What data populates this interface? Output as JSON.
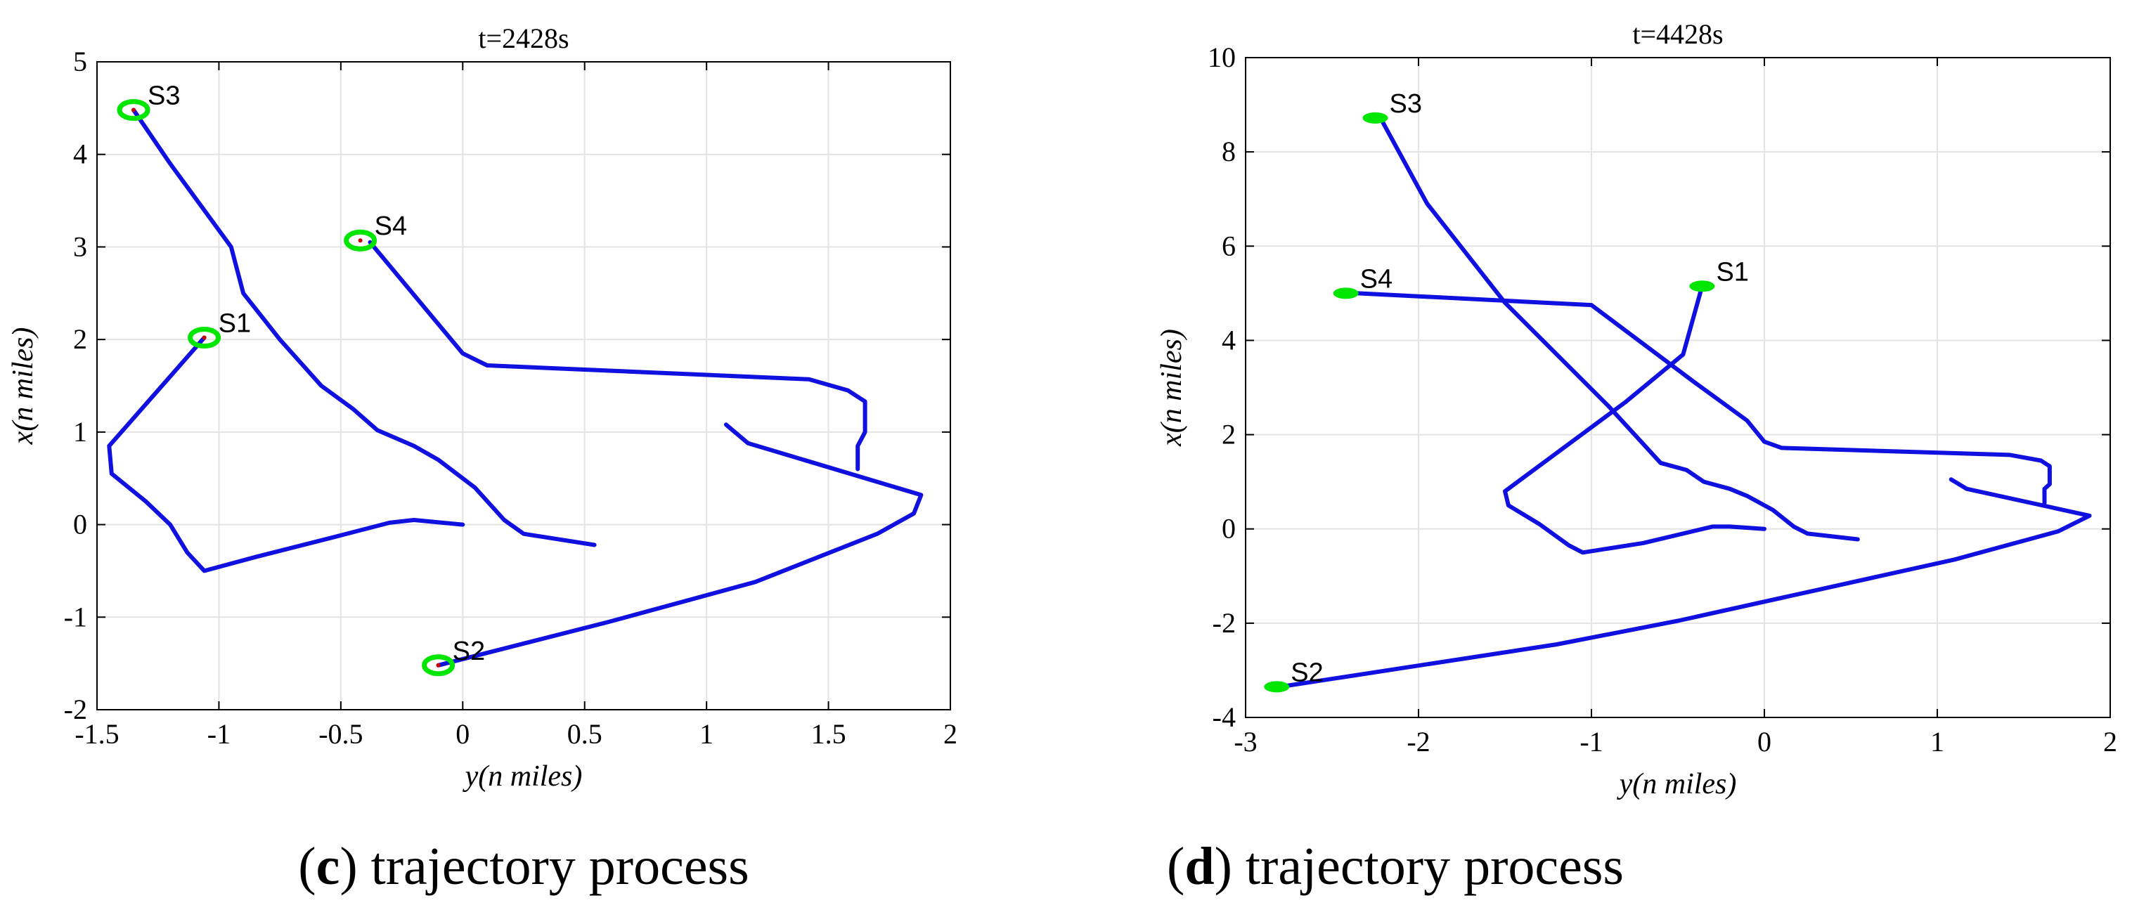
{
  "chart_data": [
    {
      "type": "line",
      "panel": "c",
      "title": "t=2428s",
      "xlabel": "y(n miles)",
      "ylabel": "x(n miles)",
      "xlim": [
        -1.5,
        2
      ],
      "ylim": [
        -2,
        5
      ],
      "xticks": [
        -1.5,
        -1,
        -0.5,
        0,
        0.5,
        1,
        1.5,
        2
      ],
      "xtick_labels": [
        "-1.5",
        "-1",
        "-0.5",
        "0",
        "0.5",
        "1",
        "1.5",
        "2"
      ],
      "yticks": [
        -2,
        -1,
        0,
        1,
        2,
        3,
        4,
        5
      ],
      "ytick_labels": [
        "-2",
        "-1",
        "0",
        "1",
        "2",
        "3",
        "4",
        "5"
      ],
      "grid": true,
      "caption_letter": "c",
      "caption_text": " trajectory process",
      "series": [
        {
          "name": "S1",
          "color": "#1010e0",
          "points": [
            [
              -1.06,
              2.02
            ],
            [
              -1.45,
              0.85
            ],
            [
              -1.44,
              0.55
            ],
            [
              -1.3,
              0.25
            ],
            [
              -1.2,
              0
            ],
            [
              -1.13,
              -0.3
            ],
            [
              -1.06,
              -0.5
            ],
            [
              -0.85,
              -0.35
            ],
            [
              -0.55,
              -0.15
            ],
            [
              -0.3,
              0.02
            ],
            [
              -0.2,
              0.05
            ],
            [
              0,
              0
            ]
          ]
        },
        {
          "name": "S2",
          "color": "#1010e0",
          "points": [
            [
              -0.1,
              -1.52
            ],
            [
              0.6,
              -1.05
            ],
            [
              1.2,
              -0.62
            ],
            [
              1.7,
              -0.1
            ],
            [
              1.85,
              0.12
            ],
            [
              1.88,
              0.32
            ],
            [
              1.17,
              0.88
            ],
            [
              1.08,
              1.08
            ]
          ]
        },
        {
          "name": "S3",
          "color": "#1010e0",
          "points": [
            [
              -1.35,
              4.48
            ],
            [
              -1.2,
              3.9
            ],
            [
              -0.95,
              3.0
            ],
            [
              -0.9,
              2.5
            ],
            [
              -0.75,
              2.0
            ],
            [
              -0.58,
              1.5
            ],
            [
              -0.45,
              1.25
            ],
            [
              -0.35,
              1.02
            ],
            [
              -0.2,
              0.85
            ],
            [
              -0.1,
              0.7
            ],
            [
              0.05,
              0.4
            ],
            [
              0.17,
              0.05
            ],
            [
              0.25,
              -0.1
            ],
            [
              0.54,
              -0.22
            ]
          ]
        },
        {
          "name": "S4",
          "color": "#1010e0",
          "points": [
            [
              -0.38,
              3.05
            ],
            [
              0.0,
              1.85
            ],
            [
              0.1,
              1.72
            ],
            [
              1.42,
              1.57
            ],
            [
              1.58,
              1.45
            ],
            [
              1.65,
              1.33
            ],
            [
              1.65,
              1.0
            ],
            [
              1.62,
              0.85
            ],
            [
              1.62,
              0.6
            ]
          ]
        }
      ],
      "markers": [
        {
          "name": "S1",
          "label": "S1",
          "at": [
            -1.06,
            2.02
          ],
          "shape": "ring",
          "color": "#00e600"
        },
        {
          "name": "S2",
          "label": "S2",
          "at": [
            -0.1,
            -1.52
          ],
          "shape": "ring",
          "color": "#00e600"
        },
        {
          "name": "S3",
          "label": "S3",
          "at": [
            -1.35,
            4.48
          ],
          "shape": "ring",
          "color": "#00e600"
        },
        {
          "name": "S4",
          "label": "S4",
          "at": [
            -0.42,
            3.07
          ],
          "shape": "ring",
          "color": "#00e600"
        }
      ]
    },
    {
      "type": "line",
      "panel": "d",
      "title": "t=4428s",
      "xlabel": "y(n miles)",
      "ylabel": "x(n miles)",
      "xlim": [
        -3,
        2
      ],
      "ylim": [
        -4,
        10
      ],
      "xticks": [
        -3,
        -2,
        -1,
        0,
        1,
        2
      ],
      "xtick_labels": [
        "-3",
        "-2",
        "-1",
        "0",
        "1",
        "2"
      ],
      "yticks": [
        -4,
        -2,
        0,
        2,
        4,
        6,
        8,
        10
      ],
      "ytick_labels": [
        "-4",
        "-2",
        "0",
        "2",
        "4",
        "6",
        "8",
        "10"
      ],
      "grid": true,
      "caption_letter": "d",
      "caption_text": " trajectory process",
      "series": [
        {
          "name": "S1",
          "color": "#1010e0",
          "points": [
            [
              -0.36,
              5.15
            ],
            [
              -0.47,
              3.7
            ],
            [
              -0.8,
              2.7
            ],
            [
              -1.5,
              0.8
            ],
            [
              -1.48,
              0.5
            ],
            [
              -1.3,
              0.1
            ],
            [
              -1.13,
              -0.35
            ],
            [
              -1.05,
              -0.5
            ],
            [
              -0.7,
              -0.3
            ],
            [
              -0.3,
              0.05
            ],
            [
              -0.2,
              0.05
            ],
            [
              0,
              0
            ]
          ]
        },
        {
          "name": "S2",
          "color": "#1010e0",
          "points": [
            [
              -2.8,
              -3.35
            ],
            [
              -2.0,
              -2.9
            ],
            [
              -1.2,
              -2.45
            ],
            [
              -0.5,
              -1.95
            ],
            [
              0.3,
              -1.3
            ],
            [
              1.1,
              -0.65
            ],
            [
              1.7,
              -0.05
            ],
            [
              1.88,
              0.28
            ],
            [
              1.17,
              0.85
            ],
            [
              1.08,
              1.05
            ]
          ]
        },
        {
          "name": "S3",
          "color": "#1010e0",
          "points": [
            [
              -2.22,
              8.72
            ],
            [
              -1.95,
              6.9
            ],
            [
              -1.5,
              4.8
            ],
            [
              -0.9,
              2.6
            ],
            [
              -0.6,
              1.4
            ],
            [
              -0.45,
              1.25
            ],
            [
              -0.35,
              1.0
            ],
            [
              -0.2,
              0.85
            ],
            [
              -0.1,
              0.7
            ],
            [
              0.05,
              0.4
            ],
            [
              0.17,
              0.05
            ],
            [
              0.25,
              -0.1
            ],
            [
              0.54,
              -0.22
            ]
          ]
        },
        {
          "name": "S4",
          "color": "#1010e0",
          "points": [
            [
              -2.35,
              5.0
            ],
            [
              -1.0,
              4.75
            ],
            [
              -0.4,
              3.1
            ],
            [
              -0.1,
              2.3
            ],
            [
              0.0,
              1.85
            ],
            [
              0.1,
              1.72
            ],
            [
              1.42,
              1.57
            ],
            [
              1.6,
              1.45
            ],
            [
              1.65,
              1.33
            ],
            [
              1.65,
              0.95
            ],
            [
              1.62,
              0.85
            ],
            [
              1.62,
              0.55
            ]
          ]
        }
      ],
      "markers": [
        {
          "name": "S1",
          "label": "S1",
          "at": [
            -0.36,
            5.15
          ],
          "shape": "blob",
          "color": "#00e600"
        },
        {
          "name": "S2",
          "label": "S2",
          "at": [
            -2.82,
            -3.35
          ],
          "shape": "blob",
          "color": "#00e600"
        },
        {
          "name": "S3",
          "label": "S3",
          "at": [
            -2.25,
            8.72
          ],
          "shape": "blob",
          "color": "#00e600"
        },
        {
          "name": "S4",
          "label": "S4",
          "at": [
            -2.42,
            5.0
          ],
          "shape": "blob",
          "color": "#00e600"
        }
      ]
    }
  ]
}
